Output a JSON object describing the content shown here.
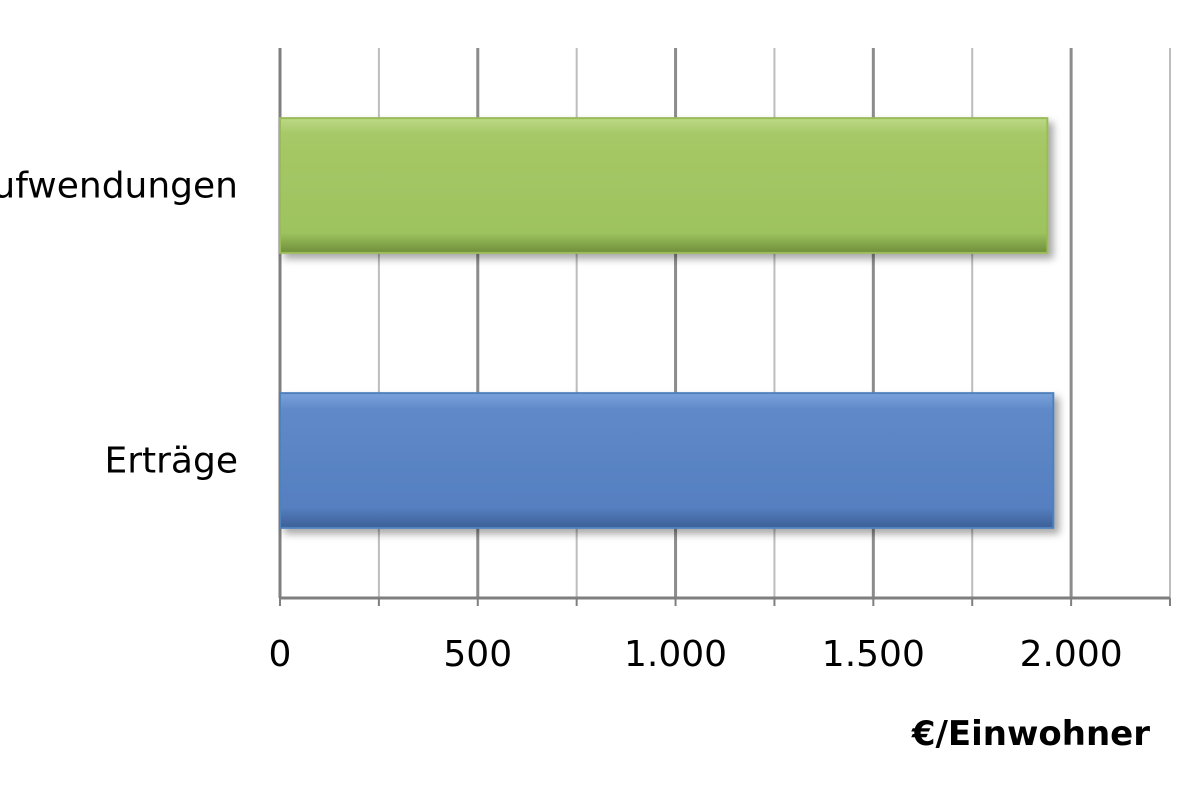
{
  "chart_data": {
    "type": "bar",
    "orientation": "horizontal",
    "categories": [
      "Erträge",
      "Aufwendungen"
    ],
    "values": [
      1955,
      1940
    ],
    "colors": [
      "#4f81bd",
      "#9bbb59"
    ],
    "xlabel": "€/Einwohner",
    "ylabel": "",
    "title": "",
    "xlim": [
      0,
      2250
    ],
    "xticks": [
      0,
      500,
      1000,
      1500,
      2000
    ],
    "tick_labels": [
      "0",
      "500",
      "1.000",
      "1.500",
      "2.000"
    ],
    "grid": true,
    "legend": "none"
  }
}
